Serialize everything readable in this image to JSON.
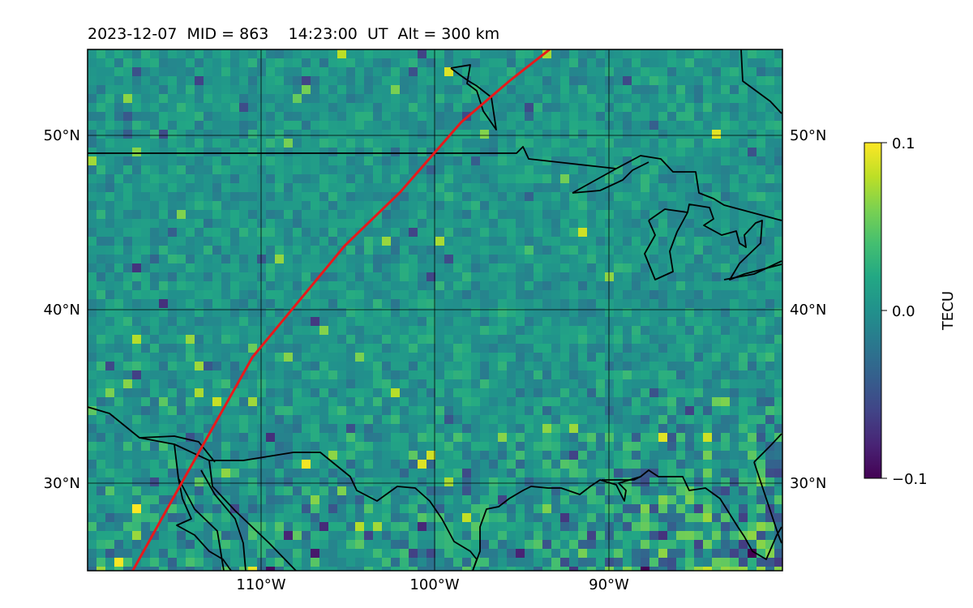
{
  "title": "2023-12-07  MID = 863    14:23:00  UT  Alt = 300 km",
  "map": {
    "lat_range": [
      25,
      55
    ],
    "lon_range": [
      -120,
      -80
    ],
    "lat_gridlines": [
      30,
      40,
      50
    ],
    "lon_gridlines": [
      -110,
      -100,
      -90
    ],
    "lat_labels": [
      "30°N",
      "40°N",
      "50°N"
    ],
    "lon_labels": [
      "110°W",
      "100°W",
      "90°W"
    ],
    "background_colormap": "viridis",
    "track": {
      "color": "#e8191b",
      "points": [
        [
          -117.4,
          25.0
        ],
        [
          -114.5,
          30.2
        ],
        [
          -110.5,
          37.3
        ],
        [
          -105.2,
          43.7
        ],
        [
          -102.0,
          46.8
        ],
        [
          -98.5,
          50.8
        ],
        [
          -95.7,
          53.2
        ],
        [
          -93.4,
          55.0
        ]
      ]
    }
  },
  "colorbar": {
    "label": "TECU",
    "min": -0.1,
    "max": 0.1,
    "ticks": [
      "0.1",
      "0.0",
      "−0.1"
    ],
    "colormap": "viridis"
  }
}
